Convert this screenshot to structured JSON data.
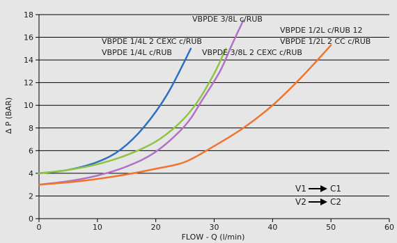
{
  "chart_data": {
    "type": "line",
    "xlabel": "FLOW - Q (l/min)",
    "ylabel": "∆ P (BAR)",
    "xlim": [
      0,
      60
    ],
    "ylim": [
      0,
      18
    ],
    "xticks": [
      "0",
      "10",
      "20",
      "30",
      "40",
      "50",
      "60"
    ],
    "yticks": [
      "0",
      "2",
      "4",
      "6",
      "8",
      "10",
      "12",
      "14",
      "16",
      "18"
    ],
    "grid": "horizontal",
    "series": [
      {
        "color": "#2e6fc2",
        "x": [
          0,
          5,
          10,
          14,
          18,
          22,
          26
        ],
        "y": [
          4.0,
          4.3,
          5.0,
          6.1,
          8.1,
          11.0,
          15.0
        ]
      },
      {
        "color": "#8fc442",
        "x": [
          0,
          5,
          10,
          15,
          20,
          24,
          27,
          30,
          32
        ],
        "y": [
          4.0,
          4.3,
          4.8,
          5.6,
          6.8,
          8.4,
          10.2,
          12.8,
          15.0
        ]
      },
      {
        "color": "#b071c6",
        "x": [
          0,
          5,
          10,
          15,
          20,
          25,
          28,
          31,
          33,
          35
        ],
        "y": [
          3.0,
          3.3,
          3.8,
          4.6,
          5.9,
          8.2,
          10.5,
          13.0,
          15.3,
          17.5
        ]
      },
      {
        "color": "#f0742e",
        "x": [
          0,
          5,
          10,
          15,
          20,
          25,
          30,
          35,
          40,
          45,
          50
        ],
        "y": [
          3.0,
          3.2,
          3.5,
          3.9,
          4.4,
          5.0,
          6.4,
          8.0,
          10.0,
          12.5,
          15.3
        ]
      }
    ],
    "annotations": [
      "VBPDE 3/8L c/RUB",
      "VBPDE 1/4L 2 CEXC c/RUB",
      "VBPDE 1/4L c/RUB",
      "VBPDE 3/8L 2 CEXC c/RUB",
      "VBPDE 1/2L c/RUB 12",
      "VBPDE 1/2L 2 CC c/RUB"
    ],
    "legend": {
      "rows": [
        {
          "from": "V1",
          "to": "C1"
        },
        {
          "from": "V2",
          "to": "C2"
        }
      ]
    }
  }
}
